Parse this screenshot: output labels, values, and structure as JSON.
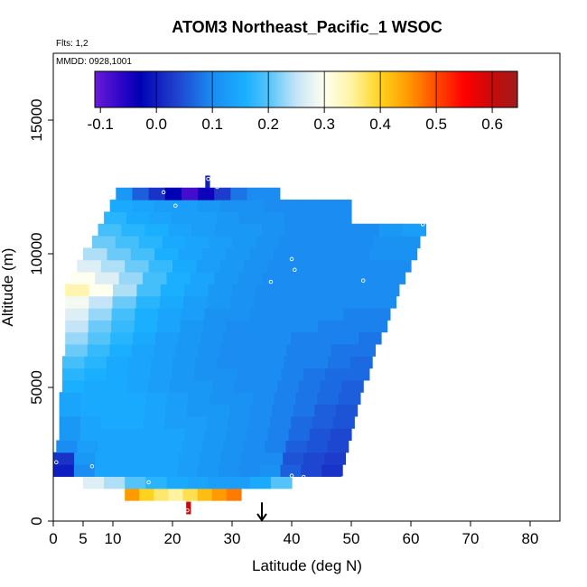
{
  "chart_data": {
    "type": "heatmap",
    "title": "ATOM3 Northeast_Pacific_1 WSOC",
    "subtitle_flights": "Flts: 1,2",
    "subtitle_dates": "MMDD: 0928,1001",
    "xlabel": "Latitude (deg N)",
    "ylabel": "Altitude (m)",
    "xlim": [
      0,
      85
    ],
    "ylim": [
      0,
      17500
    ],
    "x_ticks": [
      0,
      5,
      10,
      20,
      30,
      40,
      50,
      60,
      70,
      80
    ],
    "x_tick_labels": [
      "0",
      "5",
      "10",
      "20",
      "30",
      "40",
      "50",
      "60",
      "70",
      "80"
    ],
    "y_ticks": [
      0,
      5000,
      10000,
      15000
    ],
    "y_tick_labels": [
      "0",
      "5000",
      "10000",
      "15000"
    ],
    "colorbar": {
      "range": [
        -0.11,
        0.645
      ],
      "ticks": [
        -0.1,
        0.0,
        0.1,
        0.2,
        0.3,
        0.4,
        0.5,
        0.6
      ],
      "tick_labels": [
        "-0.1",
        "0.0",
        "0.1",
        "0.2",
        "0.3",
        "0.4",
        "0.5",
        "0.6"
      ],
      "separators": [
        0.0,
        0.1,
        0.2,
        0.3,
        0.4,
        0.5,
        0.6
      ],
      "stops": [
        {
          "v": -0.11,
          "c": "#6a1ad8"
        },
        {
          "v": -0.06,
          "c": "#2a05c8"
        },
        {
          "v": -0.03,
          "c": "#0000b4"
        },
        {
          "v": 0.03,
          "c": "#1e3ccc"
        },
        {
          "v": 0.1,
          "c": "#1a8cf2"
        },
        {
          "v": 0.16,
          "c": "#1ab0ff"
        },
        {
          "v": 0.2,
          "c": "#54c4f8"
        },
        {
          "v": 0.25,
          "c": "#c6e4f7"
        },
        {
          "v": 0.3,
          "c": "#ffffef"
        },
        {
          "v": 0.35,
          "c": "#fff3a0"
        },
        {
          "v": 0.4,
          "c": "#ffd21e"
        },
        {
          "v": 0.45,
          "c": "#ff9a00"
        },
        {
          "v": 0.5,
          "c": "#ff4a00"
        },
        {
          "v": 0.55,
          "c": "#ff0000"
        },
        {
          "v": 0.6,
          "c": "#c80a0a"
        },
        {
          "v": 0.645,
          "c": "#a01c1c"
        }
      ]
    },
    "cell_height_m": 450,
    "rows": [
      {
        "alt": 500,
        "x0": 22.3,
        "x1": 23.0,
        "values": [
          0.6
        ]
      },
      {
        "alt": 1000,
        "x0": 12.0,
        "x1": 31.5,
        "values": [
          0.45,
          0.4,
          0.37,
          0.35,
          0.38,
          0.42,
          0.45,
          0.47
        ]
      },
      {
        "alt": 1450,
        "x0": 5.0,
        "x1": 40.0,
        "values": [
          0.27,
          0.24,
          0.2,
          0.17,
          0.15,
          0.14,
          0.13,
          0.13,
          0.15,
          0.2
        ]
      },
      {
        "alt": 1900,
        "x0": 0.0,
        "x1": 48.5,
        "values": [
          0.0,
          0.1,
          0.14,
          0.14,
          0.14,
          0.14,
          0.13,
          0.12,
          0.11,
          0.1,
          0.11,
          0.06,
          0.04,
          0.02
        ]
      },
      {
        "alt": 2350,
        "x0": 0.0,
        "x1": 49.0,
        "values": [
          0.02,
          0.12,
          0.14,
          0.14,
          0.14,
          0.14,
          0.13,
          0.12,
          0.11,
          0.1,
          0.1,
          0.05,
          0.04,
          0.03
        ]
      },
      {
        "alt": 2800,
        "x0": 0.5,
        "x1": 49.5,
        "values": [
          0.1,
          0.13,
          0.14,
          0.14,
          0.14,
          0.14,
          0.13,
          0.12,
          0.11,
          0.1,
          0.09,
          0.06,
          0.05,
          0.04
        ]
      },
      {
        "alt": 3250,
        "x0": 1.0,
        "x1": 50.0,
        "values": [
          0.12,
          0.14,
          0.14,
          0.14,
          0.14,
          0.14,
          0.13,
          0.12,
          0.11,
          0.1,
          0.09,
          0.07,
          0.05,
          0.04
        ]
      },
      {
        "alt": 3700,
        "x0": 1.0,
        "x1": 50.5,
        "values": [
          0.12,
          0.14,
          0.15,
          0.15,
          0.14,
          0.13,
          0.13,
          0.12,
          0.11,
          0.1,
          0.09,
          0.07,
          0.06,
          0.05
        ]
      },
      {
        "alt": 4150,
        "x0": 1.0,
        "x1": 51.0,
        "values": [
          0.14,
          0.15,
          0.15,
          0.15,
          0.14,
          0.13,
          0.12,
          0.12,
          0.11,
          0.1,
          0.09,
          0.08,
          0.06,
          0.05
        ]
      },
      {
        "alt": 4600,
        "x0": 1.0,
        "x1": 51.5,
        "values": [
          0.14,
          0.15,
          0.15,
          0.15,
          0.14,
          0.13,
          0.12,
          0.11,
          0.11,
          0.1,
          0.09,
          0.08,
          0.07,
          0.06
        ]
      },
      {
        "alt": 5050,
        "x0": 1.5,
        "x1": 52.0,
        "values": [
          0.16,
          0.15,
          0.15,
          0.14,
          0.13,
          0.12,
          0.12,
          0.11,
          0.1,
          0.1,
          0.09,
          0.08,
          0.07,
          0.06
        ]
      },
      {
        "alt": 5500,
        "x0": 1.5,
        "x1": 53.0,
        "values": [
          0.17,
          0.16,
          0.15,
          0.14,
          0.13,
          0.12,
          0.11,
          0.11,
          0.1,
          0.1,
          0.09,
          0.08,
          0.07,
          0.07
        ]
      },
      {
        "alt": 5950,
        "x0": 1.5,
        "x1": 53.5,
        "values": [
          0.19,
          0.17,
          0.15,
          0.14,
          0.13,
          0.12,
          0.11,
          0.1,
          0.1,
          0.1,
          0.09,
          0.09,
          0.08,
          0.07
        ]
      },
      {
        "alt": 6400,
        "x0": 2.0,
        "x1": 54.0,
        "values": [
          0.21,
          0.18,
          0.16,
          0.14,
          0.13,
          0.12,
          0.11,
          0.1,
          0.1,
          0.1,
          0.09,
          0.09,
          0.08,
          0.08
        ]
      },
      {
        "alt": 6850,
        "x0": 2.0,
        "x1": 55.0,
        "values": [
          0.23,
          0.2,
          0.17,
          0.15,
          0.13,
          0.12,
          0.11,
          0.1,
          0.1,
          0.1,
          0.09,
          0.09,
          0.09,
          0.08
        ]
      },
      {
        "alt": 7300,
        "x0": 2.0,
        "x1": 56.0,
        "values": [
          0.25,
          0.21,
          0.18,
          0.16,
          0.14,
          0.12,
          0.11,
          0.1,
          0.1,
          0.1,
          0.1,
          0.09,
          0.09,
          0.09
        ]
      },
      {
        "alt": 7750,
        "x0": 2.0,
        "x1": 56.5,
        "values": [
          0.27,
          0.23,
          0.19,
          0.16,
          0.14,
          0.13,
          0.11,
          0.11,
          0.1,
          0.1,
          0.1,
          0.1,
          0.09,
          0.09
        ]
      },
      {
        "alt": 8200,
        "x0": 2.0,
        "x1": 57.5,
        "values": [
          0.29,
          0.25,
          0.21,
          0.17,
          0.15,
          0.13,
          0.12,
          0.11,
          0.1,
          0.1,
          0.1,
          0.1,
          0.1,
          0.1
        ]
      },
      {
        "alt": 8650,
        "x0": 2.0,
        "x1": 58.0,
        "values": [
          0.34,
          0.3,
          0.24,
          0.19,
          0.16,
          0.14,
          0.12,
          0.11,
          0.1,
          0.1,
          0.1,
          0.1,
          0.1,
          0.1
        ]
      },
      {
        "alt": 9100,
        "x0": 3.0,
        "x1": 59.0,
        "values": [
          0.3,
          0.27,
          0.23,
          0.19,
          0.16,
          0.14,
          0.12,
          0.11,
          0.1,
          0.1,
          0.1,
          0.1,
          0.1,
          0.1
        ]
      },
      {
        "alt": 9550,
        "x0": 4.0,
        "x1": 60.0,
        "values": [
          0.27,
          0.24,
          0.21,
          0.18,
          0.15,
          0.13,
          0.12,
          0.11,
          0.1,
          0.1,
          0.1,
          0.1,
          0.1,
          0.1
        ]
      },
      {
        "alt": 10000,
        "x0": 5.0,
        "x1": 61.0,
        "values": [
          0.24,
          0.21,
          0.19,
          0.16,
          0.14,
          0.13,
          0.12,
          0.11,
          0.1,
          0.1,
          0.1,
          0.1,
          0.11,
          0.11
        ]
      },
      {
        "alt": 10450,
        "x0": 6.5,
        "x1": 61.5,
        "values": [
          0.21,
          0.19,
          0.17,
          0.15,
          0.14,
          0.13,
          0.12,
          0.11,
          0.1,
          0.1,
          0.1,
          0.1,
          0.11,
          0.11
        ]
      },
      {
        "alt": 10900,
        "x0": 7.5,
        "x1": 62.5,
        "values": [
          0.19,
          0.17,
          0.16,
          0.14,
          0.13,
          0.12,
          0.12,
          0.11,
          0.1,
          0.1,
          0.1,
          0.1,
          0.12,
          0.13
        ]
      },
      {
        "alt": 11350,
        "x0": 8.5,
        "x1": 50.0,
        "values": [
          0.17,
          0.15,
          0.14,
          0.13,
          0.13,
          0.12,
          0.11,
          0.11,
          0.1,
          0.1,
          0.1
        ]
      },
      {
        "alt": 11800,
        "x0": 9.5,
        "x1": 50.0,
        "values": [
          0.15,
          0.14,
          0.13,
          0.13,
          0.12,
          0.11,
          0.11,
          0.1,
          0.1,
          0.1,
          0.1
        ]
      },
      {
        "alt": 12250,
        "x0": 10.5,
        "x1": 38.0,
        "values": [
          0.12,
          0.06,
          0.02,
          -0.03,
          -0.08,
          -0.04,
          0.03,
          0.08,
          0.1,
          0.1
        ]
      },
      {
        "alt": 12700,
        "x0": 25.5,
        "x1": 26.2,
        "values": [
          0.0
        ]
      }
    ],
    "markers": [
      {
        "lat": 0.5,
        "alt": 2200
      },
      {
        "lat": 6.5,
        "alt": 2050
      },
      {
        "lat": 16.0,
        "alt": 1450
      },
      {
        "lat": 18.5,
        "alt": 12300
      },
      {
        "lat": 20.5,
        "alt": 11800
      },
      {
        "lat": 22.5,
        "alt": 400
      },
      {
        "lat": 26.0,
        "alt": 12800
      },
      {
        "lat": 27.5,
        "alt": 12500
      },
      {
        "lat": 36.5,
        "alt": 8950
      },
      {
        "lat": 40.0,
        "alt": 1700
      },
      {
        "lat": 40.0,
        "alt": 9800
      },
      {
        "lat": 40.5,
        "alt": 9400
      },
      {
        "lat": 42.0,
        "alt": 1650
      },
      {
        "lat": 48.5,
        "alt": 1600
      },
      {
        "lat": 52.0,
        "alt": 9000
      },
      {
        "lat": 62.0,
        "alt": 11100
      }
    ],
    "arrow": {
      "lat": 35.0,
      "alt_top": 700,
      "alt_bottom": 0
    }
  }
}
